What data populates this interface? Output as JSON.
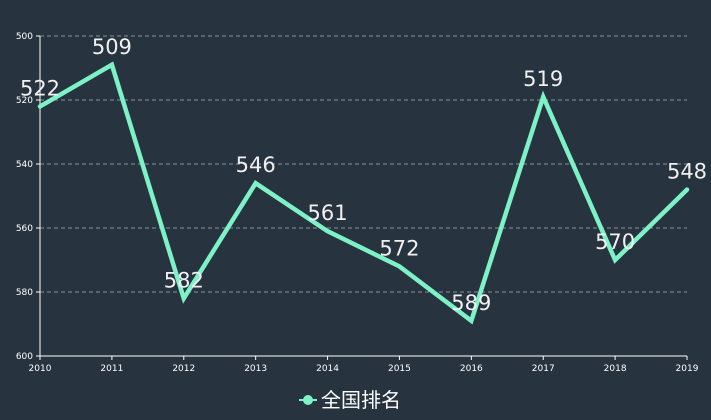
{
  "chart_data": {
    "type": "line",
    "categories": [
      "2010",
      "2011",
      "2012",
      "2013",
      "2014",
      "2015",
      "2016",
      "2017",
      "2018",
      "2019"
    ],
    "series": [
      {
        "name": "全国排名",
        "values": [
          522,
          509,
          582,
          546,
          561,
          572,
          589,
          519,
          570,
          548
        ]
      }
    ],
    "y_axis": {
      "min": 500,
      "max": 600,
      "inverted": true,
      "ticks": [
        500,
        520,
        540,
        560,
        580,
        600
      ]
    },
    "grid": true,
    "legend_position": "bottom-center",
    "colors": {
      "background": "#27333f",
      "line": "#7df2c6",
      "grid": "#8a939c",
      "axis": "#ffffff",
      "text": "#ffffff"
    }
  }
}
